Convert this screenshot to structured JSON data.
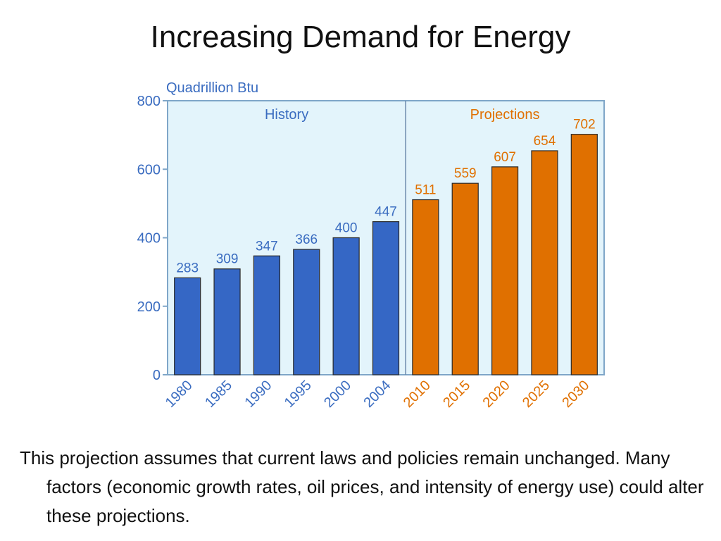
{
  "slide": {
    "title": "Increasing Demand for Energy",
    "note": "This projection assumes that current laws and policies remain unchanged. Many factors (economic growth rates, oil prices, and intensity of energy use) could alter these projections."
  },
  "chart_data": {
    "type": "bar",
    "unit_label": "Quadrillion Btu",
    "ylim": [
      0,
      800
    ],
    "yticks": [
      0,
      200,
      400,
      600,
      800
    ],
    "grid": false,
    "regions": [
      {
        "label": "History",
        "color": "#3567c5",
        "label_color": "#3a6cc0"
      },
      {
        "label": "Projections",
        "color": "#e07000",
        "label_color": "#e07000"
      }
    ],
    "categories": [
      "1980",
      "1985",
      "1990",
      "1995",
      "2000",
      "2004",
      "2010",
      "2015",
      "2020",
      "2025",
      "2030"
    ],
    "values": [
      283,
      309,
      347,
      366,
      400,
      447,
      511,
      559,
      607,
      654,
      702
    ],
    "region_of_category": [
      0,
      0,
      0,
      0,
      0,
      0,
      1,
      1,
      1,
      1,
      1
    ],
    "colors": {
      "plot_background": "#e3f4fb",
      "axis": "#7fa6c8",
      "tick_text": "#3a6cc0"
    }
  }
}
